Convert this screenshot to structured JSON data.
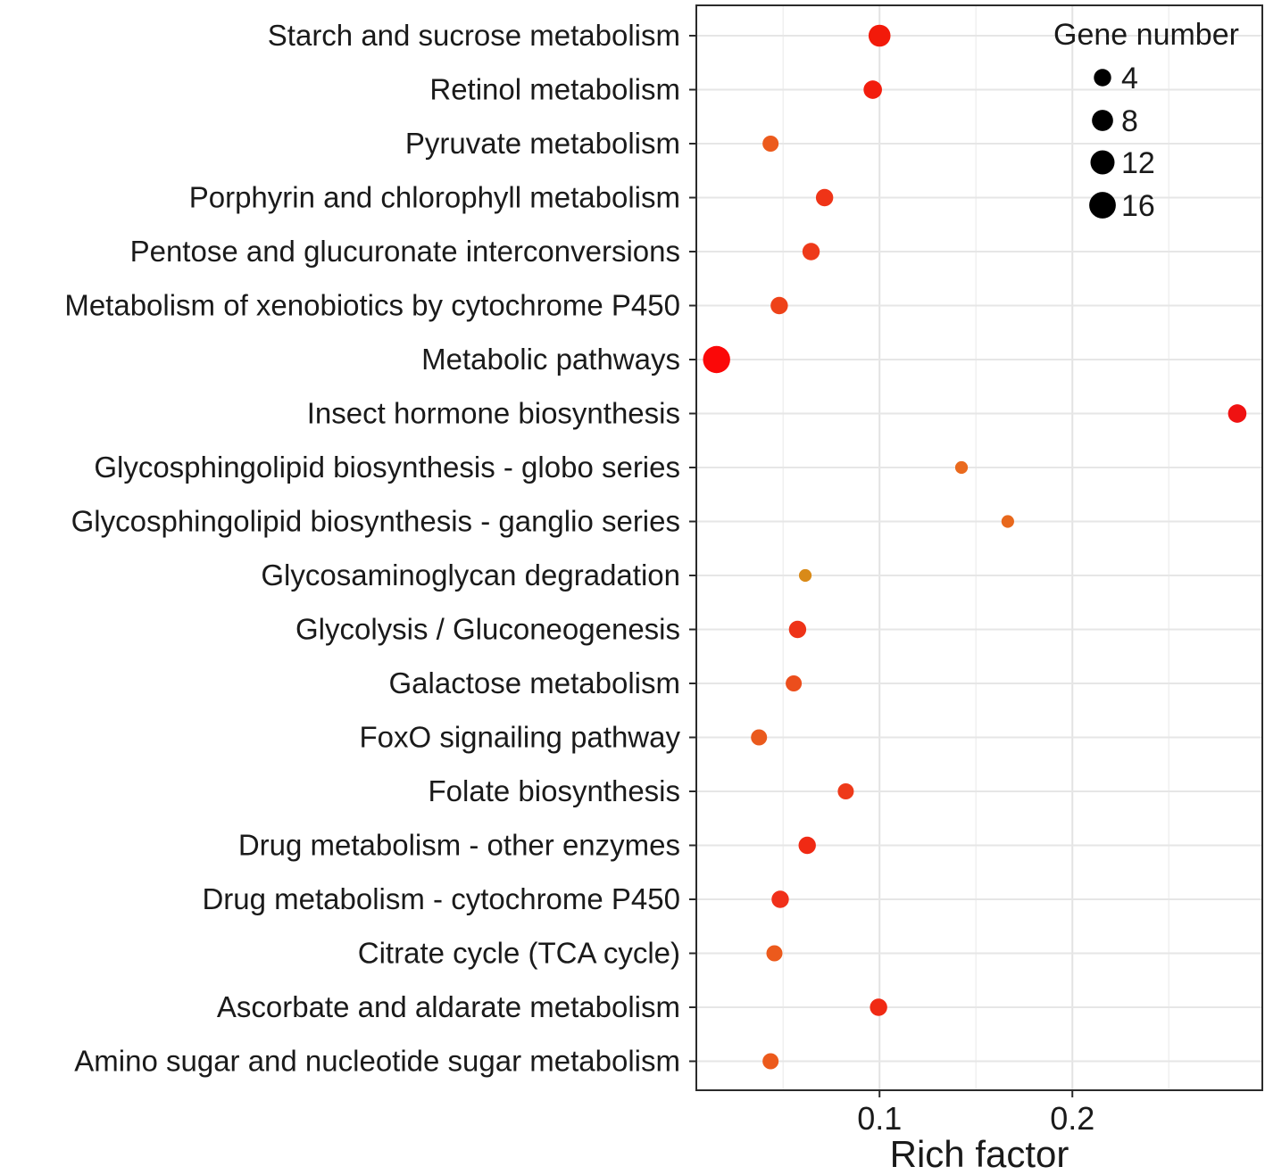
{
  "chart_data": {
    "type": "scatter",
    "title": "",
    "xlabel": "Rich factor",
    "ylabel": "",
    "xlim": [
      0.005,
      0.2985
    ],
    "x_ticks": [
      0.1,
      0.2
    ],
    "x_tick_labels": [
      "0.1",
      "0.2"
    ],
    "grid": true,
    "categories": [
      "Starch and sucrose metabolism",
      "Retinol metabolism",
      "Pyruvate metabolism",
      "Porphyrin and chlorophyll metabolism",
      "Pentose and glucuronate interconversions",
      "Metabolism of xenobiotics by cytochrome P450",
      "Metabolic pathways",
      "Insect hormone biosynthesis",
      "Glycosphingolipid biosynthesis - globo series",
      "Glycosphingolipid biosynthesis - ganglio series",
      "Glycosaminoglycan degradation",
      "Glycolysis / Gluconeogenesis",
      "Galactose metabolism",
      "FoxO signailing pathway",
      "Folate biosynthesis",
      "Drug metabolism - other enzymes",
      "Drug metabolism - cytochrome P450",
      "Citrate cycle (TCA cycle)",
      "Ascorbate and aldarate metabolism",
      "Amino sugar and nucleotide sugar metabolism"
    ],
    "points": [
      {
        "term": "Starch and sucrose metabolism",
        "rich_factor": 0.1,
        "gene_number": 9,
        "color": "#f21a0a"
      },
      {
        "term": "Retinol metabolism",
        "rich_factor": 0.0965,
        "gene_number": 5,
        "color": "#f21d0d"
      },
      {
        "term": "Pyruvate metabolism",
        "rich_factor": 0.0435,
        "gene_number": 3,
        "color": "#ec5a1c"
      },
      {
        "term": "Porphyrin and chlorophyll metabolism",
        "rich_factor": 0.0715,
        "gene_number": 4,
        "color": "#ef3417"
      },
      {
        "term": "Pentose and glucuronate interconversions",
        "rich_factor": 0.0645,
        "gene_number": 4,
        "color": "#ee3a1a"
      },
      {
        "term": "Metabolism of xenobiotics by cytochrome P450",
        "rich_factor": 0.048,
        "gene_number": 4,
        "color": "#ee4219"
      },
      {
        "term": "Metabolic pathways",
        "rich_factor": 0.0155,
        "gene_number": 17,
        "color": "#fb0808"
      },
      {
        "term": "Insect hormone biosynthesis",
        "rich_factor": 0.2855,
        "gene_number": 5,
        "color": "#f01212"
      },
      {
        "term": "Glycosphingolipid biosynthesis - globo series",
        "rich_factor": 0.1425,
        "gene_number": 1,
        "color": "#ea6a1e"
      },
      {
        "term": "Glycosphingolipid biosynthesis - ganglio series",
        "rich_factor": 0.1665,
        "gene_number": 1,
        "color": "#e8681c"
      },
      {
        "term": "Glycosaminoglycan degradation",
        "rich_factor": 0.0615,
        "gene_number": 1,
        "color": "#d98a18"
      },
      {
        "term": "Glycolysis / Gluconeogenesis",
        "rich_factor": 0.0575,
        "gene_number": 4,
        "color": "#ee3318"
      },
      {
        "term": "Galactose metabolism",
        "rich_factor": 0.0555,
        "gene_number": 3,
        "color": "#ec4e1c"
      },
      {
        "term": "FoxO signailing pathway",
        "rich_factor": 0.0375,
        "gene_number": 3,
        "color": "#ea5a1d"
      },
      {
        "term": "Folate biosynthesis",
        "rich_factor": 0.0825,
        "gene_number": 3,
        "color": "#ee3a1a"
      },
      {
        "term": "Drug metabolism - other enzymes",
        "rich_factor": 0.0625,
        "gene_number": 4,
        "color": "#f02a14"
      },
      {
        "term": "Drug metabolism - cytochrome P450",
        "rich_factor": 0.0485,
        "gene_number": 4,
        "color": "#f0301a"
      },
      {
        "term": "Citrate cycle (TCA cycle)",
        "rich_factor": 0.0455,
        "gene_number": 3,
        "color": "#ec5a1c"
      },
      {
        "term": "Ascorbate and aldarate metabolism",
        "rich_factor": 0.0995,
        "gene_number": 4,
        "color": "#f02a14"
      },
      {
        "term": "Amino sugar and nucleotide sugar metabolism",
        "rich_factor": 0.0435,
        "gene_number": 3,
        "color": "#ec5a1c"
      }
    ],
    "legend": {
      "title": "Gene number",
      "placement": "top-right",
      "values": [
        4,
        8,
        12,
        16
      ],
      "labels": [
        "4",
        "8",
        "12",
        "16"
      ],
      "color": "#000000"
    }
  }
}
